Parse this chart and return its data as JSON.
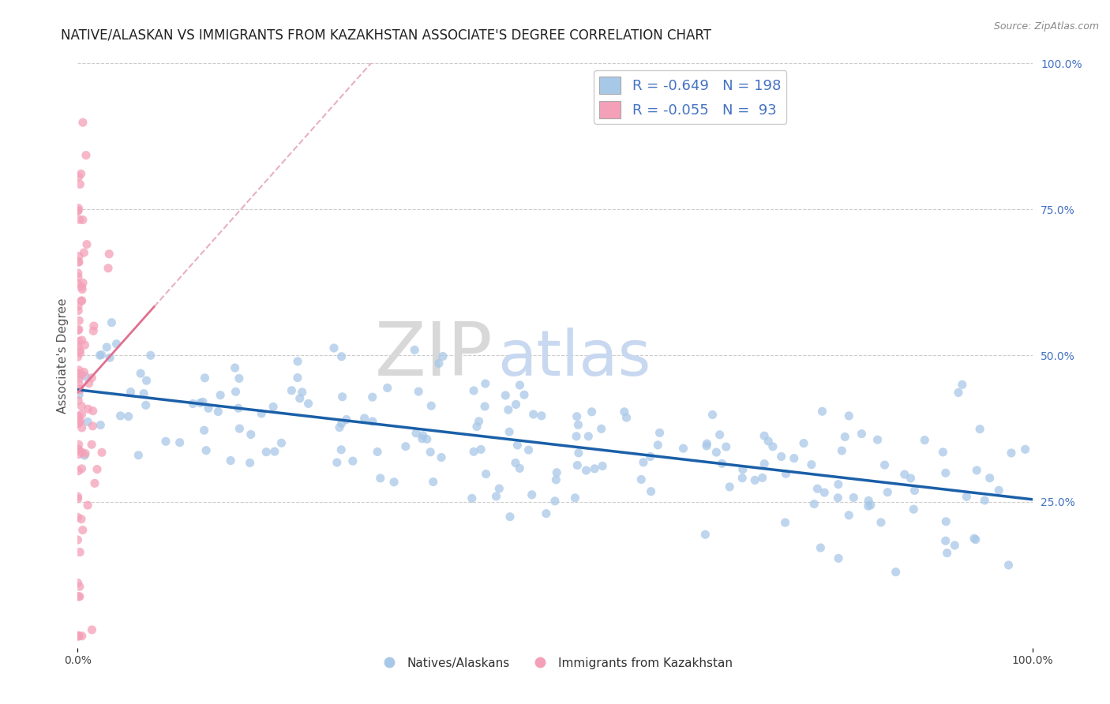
{
  "title": "NATIVE/ALASKAN VS IMMIGRANTS FROM KAZAKHSTAN ASSOCIATE'S DEGREE CORRELATION CHART",
  "source_text": "Source: ZipAtlas.com",
  "ylabel": "Associate's Degree",
  "right_yticks": [
    "100.0%",
    "75.0%",
    "50.0%",
    "25.0%"
  ],
  "right_ytick_vals": [
    1.0,
    0.75,
    0.5,
    0.25
  ],
  "watermark_zip": "ZIP",
  "watermark_atlas": "atlas",
  "legend_blue_r": "R = ",
  "legend_blue_rv": "-0.649",
  "legend_blue_n": "  N = ",
  "legend_blue_nv": "198",
  "legend_pink_r": "R = ",
  "legend_pink_rv": "-0.055",
  "legend_pink_n": "  N =  ",
  "legend_pink_nv": "93",
  "blue_color": "#a8c8e8",
  "pink_color": "#f4a0b8",
  "blue_line_color": "#1a5fa8",
  "pink_line_color": "#e07090",
  "pink_dash_color": "#e8b0c0",
  "R_blue": -0.649,
  "N_blue": 198,
  "R_pink": -0.055,
  "N_pink": 93,
  "title_fontsize": 12,
  "axis_label_fontsize": 11,
  "tick_fontsize": 10,
  "legend_fontsize": 13
}
